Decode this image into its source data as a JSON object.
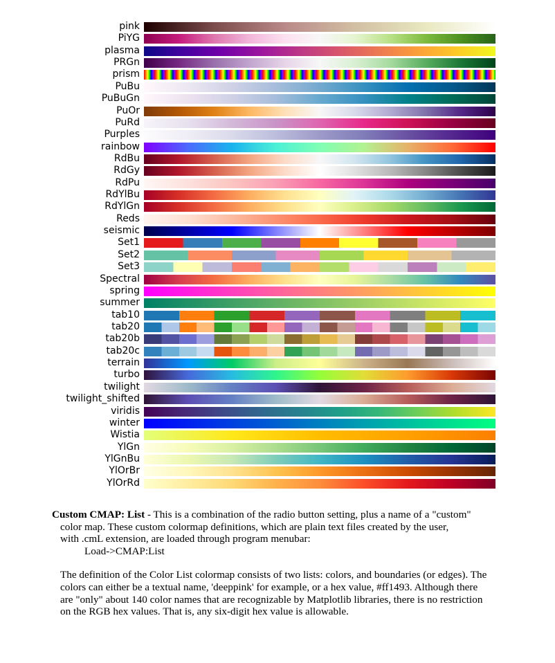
{
  "colormaps": [
    {
      "name": "pink",
      "gradient": "linear-gradient(to right,#1e0000,#7c4c4c,#b98989,#d2bfa3,#e8e8c0,#ffffff)"
    },
    {
      "name": "PiYG",
      "gradient": "linear-gradient(to right,#8e0152,#c51b7d,#de77ae,#f1b6da,#fde0ef,#f7f7f7,#e6f5d0,#b8e186,#7fbc41,#4d9221,#276419)"
    },
    {
      "name": "plasma",
      "gradient": "linear-gradient(to right,#0d0887,#46039f,#7201a8,#9c179e,#bd3786,#d8576b,#ed7953,#fb9f3a,#fdca26,#f0f921)"
    },
    {
      "name": "PRGn",
      "gradient": "linear-gradient(to right,#40004b,#762a83,#9970ab,#c2a5cf,#e7d4e8,#f7f7f7,#d9f0d3,#a6dba0,#5aae61,#1b7837,#00441b)"
    },
    {
      "name": "prism",
      "gradient": "repeating-linear-gradient(to right,#ff0000 0px,#ff7f00 2.6px,#ffff00 5.2px,#00ff00 7.8px,#0000ff 10.4px,#8f00ff 13px,#ff0000 15.6px)"
    },
    {
      "name": "PuBu",
      "gradient": "linear-gradient(to right,#fff7fb,#ece7f2,#d0d1e6,#a6bddb,#74a9cf,#3690c0,#0570b0,#045a8d,#023858)"
    },
    {
      "name": "PuBuGn",
      "gradient": "linear-gradient(to right,#fff7fb,#ece2f0,#d0d1e6,#a6bddb,#67a9cf,#3690c0,#02818a,#016c59,#014636)"
    },
    {
      "name": "PuOr",
      "gradient": "linear-gradient(to right,#7f3b08,#b35806,#e08214,#fdb863,#fee0b6,#f7f7f7,#d8daeb,#b2abd2,#8073ac,#542788,#2d004b)"
    },
    {
      "name": "PuRd",
      "gradient": "linear-gradient(to right,#f7f4f9,#e7e1ef,#d4b9da,#c994c7,#df65b0,#e7298a,#ce1256,#980043,#67001f)"
    },
    {
      "name": "Purples",
      "gradient": "linear-gradient(to right,#fcfbfd,#efedf5,#dadaeb,#bcbddc,#9e9ac8,#807dba,#6a51a3,#54278f,#3f007d)"
    },
    {
      "name": "rainbow",
      "gradient": "linear-gradient(to right,#8000ff,#4b6bfc,#1ab3ed,#4cf0d6,#80ffb4,#b3f291,#e6b36a,#ff6b38,#ff0000)"
    },
    {
      "name": "RdBu",
      "gradient": "linear-gradient(to right,#67001f,#b2182b,#d6604d,#f4a582,#fddbc7,#f7f7f7,#d1e5f0,#92c5de,#4393c3,#2166ac,#053061)"
    },
    {
      "name": "RdGy",
      "gradient": "linear-gradient(to right,#67001f,#b2182b,#d6604d,#f4a582,#fddbc7,#ffffff,#e0e0e0,#bababa,#878787,#4d4d4d,#1a1a1a)"
    },
    {
      "name": "RdPu",
      "gradient": "linear-gradient(to right,#fff7f3,#fde0dd,#fcc5c0,#fa9fb5,#f768a1,#dd3497,#ae017e,#7a0177,#49006a)"
    },
    {
      "name": "RdYlBu",
      "gradient": "linear-gradient(to right,#a50026,#d73027,#f46d43,#fdae61,#fee090,#ffffbf,#e0f3f8,#abd9e9,#74add1,#4575b4,#313695)"
    },
    {
      "name": "RdYlGn",
      "gradient": "linear-gradient(to right,#a50026,#d73027,#f46d43,#fdae61,#fee08b,#ffffbf,#d9ef8b,#a6d96a,#66bd63,#1a9850,#006837)"
    },
    {
      "name": "Reds",
      "gradient": "linear-gradient(to right,#fff5f0,#fee0d2,#fcbba1,#fc9272,#fb6a4a,#ef3b2c,#cb181d,#a50f15,#67000d)"
    },
    {
      "name": "seismic",
      "gradient": "linear-gradient(to right,#00004c,#0000ff,#ffffff,#ff0000,#7f0000)"
    },
    {
      "name": "Set1",
      "colors": [
        "#e41a1c",
        "#377eb8",
        "#4daf4a",
        "#984ea3",
        "#ff7f00",
        "#ffff33",
        "#a65628",
        "#f781bf",
        "#999999"
      ]
    },
    {
      "name": "Set2",
      "colors": [
        "#66c2a5",
        "#fc8d62",
        "#8da0cb",
        "#e78ac3",
        "#a6d854",
        "#ffd92f",
        "#e5c494",
        "#b3b3b3"
      ]
    },
    {
      "name": "Set3",
      "colors": [
        "#8dd3c7",
        "#ffffb3",
        "#bebada",
        "#fb8072",
        "#80b1d3",
        "#fdb462",
        "#b3de69",
        "#fccde5",
        "#d9d9d9",
        "#bc80bd",
        "#ccebc5",
        "#ffed6f"
      ]
    },
    {
      "name": "Spectral",
      "gradient": "linear-gradient(to right,#9e0142,#d53e4f,#f46d43,#fdae61,#fee08b,#ffffbf,#e6f598,#abdda4,#66c2a5,#3288bd,#5e4fa2)"
    },
    {
      "name": "spring",
      "gradient": "linear-gradient(to right,#ff00ff,#ffff00)"
    },
    {
      "name": "summer",
      "gradient": "linear-gradient(to right,#008066,#ffff66)"
    },
    {
      "name": "tab10",
      "colors": [
        "#1f77b4",
        "#ff7f0e",
        "#2ca02c",
        "#d62728",
        "#9467bd",
        "#8c564b",
        "#e377c2",
        "#7f7f7f",
        "#bcbd22",
        "#17becf"
      ]
    },
    {
      "name": "tab20",
      "colors": [
        "#1f77b4",
        "#aec7e8",
        "#ff7f0e",
        "#ffbb78",
        "#2ca02c",
        "#98df8a",
        "#d62728",
        "#ff9896",
        "#9467bd",
        "#c5b0d5",
        "#8c564b",
        "#c49c94",
        "#e377c2",
        "#f7b6d2",
        "#7f7f7f",
        "#c7c7c7",
        "#bcbd22",
        "#dbdb8d",
        "#17becf",
        "#9edae5"
      ]
    },
    {
      "name": "tab20b",
      "colors": [
        "#393b79",
        "#5254a3",
        "#6b6ecf",
        "#9c9ede",
        "#637939",
        "#8ca252",
        "#b5cf6b",
        "#cedb9c",
        "#8c6d31",
        "#bd9e39",
        "#e7ba52",
        "#e7cb94",
        "#843c39",
        "#ad494a",
        "#d6616b",
        "#e7969c",
        "#7b4173",
        "#a55194",
        "#ce6dbd",
        "#de9ed6"
      ]
    },
    {
      "name": "tab20c",
      "colors": [
        "#3182bd",
        "#6baed6",
        "#9ecae1",
        "#c6dbef",
        "#e6550d",
        "#fd8d3c",
        "#fdae6b",
        "#fdd0a2",
        "#31a354",
        "#74c476",
        "#a1d99b",
        "#c7e9c0",
        "#756bb1",
        "#9e9ac8",
        "#bcbddc",
        "#dadaeb",
        "#636363",
        "#969696",
        "#bdbdbd",
        "#d9d9d9"
      ]
    },
    {
      "name": "terrain",
      "gradient": "linear-gradient(to right,#333399,#0099ff,#00cc66,#ccee88,#ffff99,#ccb38a,#997755,#cbbcb8,#ffffff)"
    },
    {
      "name": "turbo",
      "gradient": "linear-gradient(to right,#30123b,#4669db,#26bce1,#2ff58c,#95fe39,#e1dd37,#fe9b2d,#d93806,#7a0403)"
    },
    {
      "name": "twilight",
      "gradient": "linear-gradient(to right,#e2d9e2,#9ebbc9,#6480c4,#5c4fb4,#2f1436,#6d2346,#b75c5a,#dbad94,#e2d9e2)"
    },
    {
      "name": "twilight_shifted",
      "gradient": "linear-gradient(to right,#2f1436,#5c4fb4,#6480c4,#9ebbc9,#e2d9e2,#dbad94,#b75c5a,#6d2346,#2f1436)"
    },
    {
      "name": "viridis",
      "gradient": "linear-gradient(to right,#440154,#482878,#3e4989,#31688e,#26828e,#1f9e89,#35b779,#6ece58,#b5de2b,#fde725)"
    },
    {
      "name": "winter",
      "gradient": "linear-gradient(to right,#0000ff,#00ff80)"
    },
    {
      "name": "Wistia",
      "gradient": "linear-gradient(to right,#e4ff7a,#ffe81a,#ffbd00,#ffa000,#fc7f00)"
    },
    {
      "name": "YlGn",
      "gradient": "linear-gradient(to right,#ffffe5,#f7fcb9,#d9f0a3,#addd8e,#78c679,#41ab5d,#238443,#006837,#004529)"
    },
    {
      "name": "YlGnBu",
      "gradient": "linear-gradient(to right,#ffffd9,#edf8b1,#c7e9b4,#7fcdbb,#41b6c4,#1d91c0,#225ea8,#253494,#081d58)"
    },
    {
      "name": "YlOrBr",
      "gradient": "linear-gradient(to right,#ffffe5,#fff7bc,#fee391,#fec44f,#fe9929,#ec7014,#cc4c02,#993404,#662506)"
    },
    {
      "name": "YlOrRd",
      "gradient": "linear-gradient(to right,#ffffcc,#ffeda0,#fed976,#feb24c,#fd8d3c,#fc4e2a,#e31a1c,#bd0026,#800026)"
    }
  ],
  "text": {
    "heading": "Custom CMAP: List",
    "line1_rest": " - This is a combination of the radio button setting, plus a name of a \"custom\"",
    "line2": "color map. These custom colormap definitions, which are plain text files created by the user,",
    "line3": "with .cmL extension, are loaded through program menubar:",
    "line4": "Load->CMAP:List",
    "para2_l1": "The definition of the Color List colormap consists of two lists: colors, and boundaries (or edges). The",
    "para2_l2": "colors can either be a textual name, 'deeppink' for example, or a hex value, #ff1493. Although there",
    "para2_l3": "are \"only\" about 140 color names that are recognizable by Matplotlib libraries, there is no restriction",
    "para2_l4": "on the RGB hex values. That is, any six-digit hex value is allowable."
  }
}
